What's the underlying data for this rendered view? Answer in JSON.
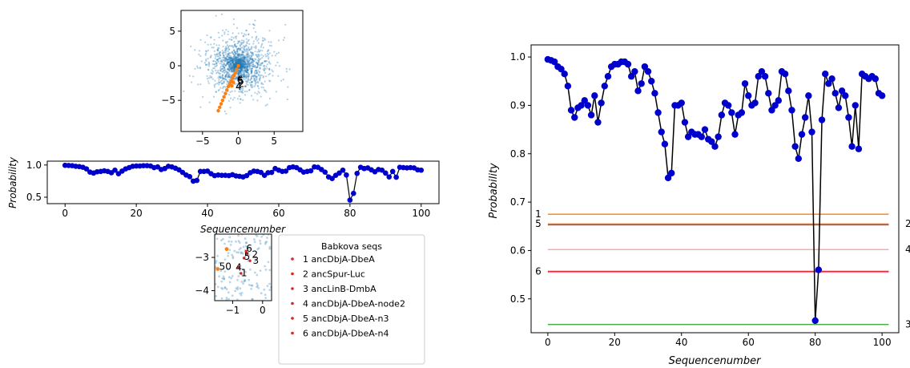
{
  "chart_data": [
    {
      "id": "scatter_main",
      "type": "scatter",
      "xlim": [
        -8,
        9
      ],
      "ylim": [
        -9.5,
        8
      ],
      "x_ticks": [
        -5,
        0,
        5
      ],
      "y_ticks": [
        5,
        0,
        -5
      ],
      "tick_labels_x": [
        "−5",
        "0",
        "5"
      ],
      "tick_labels_y": [
        "5",
        "0",
        "−5"
      ],
      "series": [
        {
          "color": "#1f77b4",
          "role": "background-cloud"
        },
        {
          "color": "#ff7f0e",
          "role": "path",
          "points": [
            [
              -2.8,
              -6.5
            ],
            [
              -2.6,
              -6.0
            ],
            [
              -2.4,
              -5.5
            ],
            [
              -2.2,
              -5.0
            ],
            [
              -2.0,
              -4.5
            ],
            [
              -1.8,
              -4.0
            ],
            [
              -1.6,
              -3.5
            ],
            [
              -1.4,
              -3.0
            ],
            [
              -1.2,
              -2.6
            ],
            [
              -1.0,
              -2.2
            ],
            [
              -0.8,
              -1.8
            ],
            [
              -0.6,
              -1.4
            ],
            [
              -0.4,
              -1.0
            ],
            [
              -0.2,
              -0.5
            ],
            [
              0.0,
              0.0
            ],
            [
              -0.9,
              -2.9
            ],
            [
              -0.7,
              -2.4
            ]
          ]
        }
      ],
      "labels": [
        {
          "text": "5",
          "x": -0.1,
          "y": -2.2
        },
        {
          "text": "2",
          "x": 0.0,
          "y": -2.6
        },
        {
          "text": "6",
          "x": -0.2,
          "y": -2.0
        },
        {
          "text": "4",
          "x": -0.4,
          "y": -3.0
        }
      ]
    },
    {
      "id": "prob_small",
      "type": "line",
      "xlim": [
        -5,
        105
      ],
      "ylim": [
        0.4,
        1.06
      ],
      "x_ticks": [
        0,
        20,
        40,
        60,
        80,
        100
      ],
      "y_ticks": [
        1.0,
        0.5
      ],
      "tick_labels_x": [
        "0",
        "20",
        "40",
        "60",
        "80",
        "100"
      ],
      "tick_labels_y": [
        "1.0",
        "0.5"
      ],
      "xlabel": "Sequencenumber",
      "ylabel": "Probability"
    },
    {
      "id": "scatter_zoom",
      "type": "scatter",
      "xlim": [
        -1.6,
        0.3
      ],
      "ylim": [
        -4.3,
        -2.3
      ],
      "x_ticks": [
        -1,
        0
      ],
      "y_ticks": [
        -3,
        -4
      ],
      "tick_labels_x": [
        "−1",
        "0"
      ],
      "tick_labels_y": [
        "−3",
        "−4"
      ],
      "orange_points": [
        [
          -1.5,
          -3.35
        ],
        [
          -1.2,
          -2.75
        ]
      ],
      "red_points": [
        [
          -0.72,
          -3.48
        ],
        [
          -0.52,
          -2.9
        ],
        [
          -0.42,
          -3.1
        ],
        [
          -0.8,
          -3.3
        ],
        [
          -0.62,
          -3.02
        ],
        [
          -0.55,
          -2.82
        ]
      ],
      "labels": [
        {
          "text": "50",
          "x": -1.45,
          "y": -3.27
        },
        {
          "text": "6",
          "x": -0.55,
          "y": -2.73
        },
        {
          "text": "5",
          "x": -0.62,
          "y": -2.98
        },
        {
          "text": "2",
          "x": -0.36,
          "y": -2.92
        },
        {
          "text": "3",
          "x": -0.33,
          "y": -3.1
        },
        {
          "text": "4",
          "x": -0.9,
          "y": -3.3
        },
        {
          "text": "1",
          "x": -0.72,
          "y": -3.47
        }
      ]
    },
    {
      "id": "prob_large",
      "type": "line",
      "xlim": [
        -5,
        105
      ],
      "ylim": [
        0.43,
        1.025
      ],
      "x_ticks": [
        0,
        20,
        40,
        60,
        80,
        100
      ],
      "y_ticks": [
        1.0,
        0.9,
        0.8,
        0.7,
        0.6,
        0.5
      ],
      "tick_labels_x": [
        "0",
        "20",
        "40",
        "60",
        "80",
        "100"
      ],
      "tick_labels_y": [
        "1.0",
        "0.9",
        "0.8",
        "0.7",
        "0.6",
        "0.5"
      ],
      "xlabel": "Sequencenumber",
      "ylabel": "Probability",
      "hlines": [
        {
          "y": 0.675,
          "color": "#ff7f0e",
          "left": "1",
          "right": ""
        },
        {
          "y": 0.655,
          "color": "#ff7f0e",
          "left": "5",
          "right": "2"
        },
        {
          "y": 0.653,
          "color": "#8c564b",
          "left": "",
          "right": ""
        },
        {
          "y": 0.602,
          "color": "#ff9896",
          "left": "",
          "right": "4"
        },
        {
          "y": 0.557,
          "color": "#d62728",
          "left": "6",
          "right": ""
        },
        {
          "y": 0.555,
          "color": "#e377c2",
          "left": "",
          "right": ""
        },
        {
          "y": 0.447,
          "color": "#2ca02c",
          "left": "",
          "right": "3"
        }
      ]
    }
  ],
  "probabilities": [
    0.995,
    0.993,
    0.99,
    0.98,
    0.975,
    0.965,
    0.94,
    0.89,
    0.875,
    0.895,
    0.9,
    0.91,
    0.9,
    0.88,
    0.92,
    0.865,
    0.905,
    0.94,
    0.96,
    0.98,
    0.985,
    0.985,
    0.99,
    0.99,
    0.985,
    0.96,
    0.97,
    0.93,
    0.945,
    0.98,
    0.97,
    0.95,
    0.925,
    0.885,
    0.845,
    0.82,
    0.75,
    0.76,
    0.9,
    0.9,
    0.905,
    0.865,
    0.835,
    0.845,
    0.84,
    0.84,
    0.835,
    0.85,
    0.83,
    0.825,
    0.815,
    0.835,
    0.88,
    0.905,
    0.9,
    0.885,
    0.84,
    0.88,
    0.885,
    0.945,
    0.92,
    0.9,
    0.905,
    0.96,
    0.97,
    0.96,
    0.925,
    0.89,
    0.9,
    0.91,
    0.97,
    0.965,
    0.93,
    0.89,
    0.815,
    0.79,
    0.84,
    0.875,
    0.92,
    0.845,
    0.455,
    0.56,
    0.87,
    0.965,
    0.945,
    0.955,
    0.925,
    0.895,
    0.93,
    0.92,
    0.875,
    0.815,
    0.9,
    0.81,
    0.965,
    0.96,
    0.955,
    0.96,
    0.955,
    0.925,
    0.92
  ],
  "legend": {
    "title": "Babkova seqs",
    "marker_color": "#d62728",
    "entries": [
      "1 ancDbjA-DbeA",
      "2 ancSpur-Luc",
      "3 ancLinB-DmbA",
      "4 ancDbjA-DbeA-node2",
      "5 ancDbjA-DbeA-n3",
      "6 ancDbjA-DbeA-n4"
    ]
  }
}
